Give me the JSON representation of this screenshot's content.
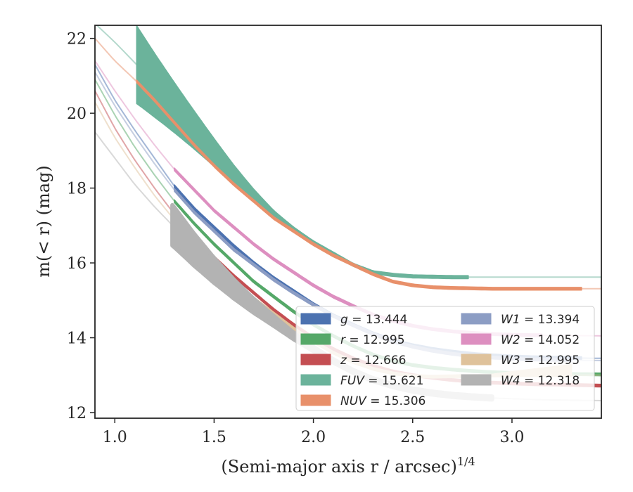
{
  "chart_data": {
    "type": "line",
    "xlabel": "(Semi-major axis r / arcsec)",
    "xlabel_power": "1/4",
    "ylabel": "m(< r) (mag)",
    "xlim": [
      0.9,
      3.45
    ],
    "ylim": [
      22.35,
      11.85
    ],
    "y_inverted": true,
    "x_ticks": [
      1.0,
      1.5,
      2.0,
      2.5,
      3.0
    ],
    "x_tick_labels": [
      "1.0",
      "1.5",
      "2.0",
      "2.5",
      "3.0"
    ],
    "y_ticks": [
      12,
      14,
      16,
      18,
      20,
      22
    ],
    "y_tick_labels": [
      "12",
      "14",
      "16",
      "18",
      "20",
      "22"
    ],
    "grid": false,
    "legend_position": "lower-right",
    "series": [
      {
        "name": "g",
        "value": "13.444",
        "color": "#4c72b0",
        "x": [
          0.9,
          1.0,
          1.1,
          1.2,
          1.3,
          1.4,
          1.5,
          1.6,
          1.7,
          1.8,
          1.9,
          2.0,
          2.1,
          2.2,
          2.3,
          2.4,
          2.5,
          2.6,
          2.7,
          2.8,
          2.9,
          3.0,
          3.1,
          3.2,
          3.3,
          3.45
        ],
        "y": [
          21.3,
          20.35,
          19.55,
          18.8,
          18.05,
          17.45,
          16.95,
          16.45,
          16.0,
          15.6,
          15.25,
          14.9,
          14.6,
          14.35,
          14.12,
          13.93,
          13.8,
          13.7,
          13.63,
          13.57,
          13.53,
          13.5,
          13.48,
          13.47,
          13.46,
          13.45
        ],
        "band_start": 1.3,
        "band_end": 3.35
      },
      {
        "name": "r",
        "value": "12.995",
        "color": "#55a868",
        "x": [
          0.9,
          1.0,
          1.1,
          1.2,
          1.3,
          1.4,
          1.5,
          1.6,
          1.7,
          1.8,
          1.9,
          2.0,
          2.1,
          2.2,
          2.3,
          2.4,
          2.5,
          2.6,
          2.7,
          2.8,
          2.9,
          3.0,
          3.1,
          3.2,
          3.3,
          3.45
        ],
        "y": [
          20.9,
          19.95,
          19.1,
          18.35,
          17.65,
          17.05,
          16.5,
          16.0,
          15.5,
          15.1,
          14.7,
          14.35,
          14.05,
          13.78,
          13.55,
          13.38,
          13.27,
          13.2,
          13.15,
          13.11,
          13.08,
          13.06,
          13.05,
          13.04,
          13.03,
          13.02
        ],
        "band_start": 1.3,
        "band_end": 3.45
      },
      {
        "name": "z",
        "value": "12.666",
        "color": "#c44e52",
        "x": [
          0.9,
          1.0,
          1.1,
          1.2,
          1.3,
          1.4,
          1.5,
          1.6,
          1.7,
          1.8,
          1.9,
          2.0,
          2.1,
          2.2,
          2.3,
          2.4,
          2.5,
          2.6,
          2.7,
          2.8,
          2.9,
          3.0,
          3.1,
          3.2,
          3.3,
          3.45
        ],
        "y": [
          20.6,
          19.6,
          18.75,
          18.0,
          17.3,
          16.7,
          16.15,
          15.65,
          15.2,
          14.75,
          14.35,
          14.0,
          13.7,
          13.45,
          13.25,
          13.1,
          13.0,
          12.93,
          12.87,
          12.83,
          12.8,
          12.78,
          12.76,
          12.75,
          12.74,
          12.72
        ],
        "band_start": 1.3,
        "band_end": 3.45
      },
      {
        "name": "FUV",
        "value": "15.621",
        "color": "#6bb39b",
        "x": [
          0.9,
          1.0,
          1.11,
          1.2,
          1.3,
          1.4,
          1.5,
          1.6,
          1.7,
          1.8,
          1.9,
          2.0,
          2.1,
          2.2,
          2.3,
          2.4,
          2.5,
          2.6,
          2.7,
          2.8,
          2.9,
          3.0,
          3.2,
          3.45
        ],
        "y": [
          22.4,
          21.9,
          21.3,
          20.75,
          20.15,
          19.55,
          18.95,
          18.35,
          17.8,
          17.3,
          16.9,
          16.55,
          16.25,
          15.95,
          15.75,
          15.68,
          15.64,
          15.63,
          15.62,
          15.62,
          15.62,
          15.62,
          15.62,
          15.62
        ],
        "band_start": 1.11,
        "band_end": 2.78,
        "wedge_width": 1.0
      },
      {
        "name": "NUV",
        "value": "15.306",
        "color": "#e8906a",
        "x": [
          0.9,
          1.0,
          1.11,
          1.2,
          1.3,
          1.4,
          1.5,
          1.6,
          1.7,
          1.8,
          1.9,
          2.0,
          2.1,
          2.2,
          2.3,
          2.4,
          2.5,
          2.6,
          2.7,
          2.8,
          2.9,
          3.0,
          3.2,
          3.45
        ],
        "y": [
          22.0,
          21.4,
          20.85,
          20.35,
          19.75,
          19.15,
          18.6,
          18.1,
          17.65,
          17.2,
          16.85,
          16.5,
          16.2,
          15.95,
          15.7,
          15.5,
          15.4,
          15.35,
          15.33,
          15.32,
          15.31,
          15.31,
          15.31,
          15.31
        ],
        "band_start": 1.11,
        "band_end": 3.35
      },
      {
        "name": "W1",
        "value": "13.394",
        "color": "#8c9dc4",
        "x": [
          0.9,
          1.0,
          1.1,
          1.2,
          1.3,
          1.4,
          1.5,
          1.6,
          1.7,
          1.8,
          1.9,
          2.0,
          2.1,
          2.2,
          2.3,
          2.4,
          2.5,
          2.6,
          2.7,
          2.8,
          2.9,
          3.0,
          3.1,
          3.2,
          3.3,
          3.45
        ],
        "y": [
          21.1,
          20.2,
          19.4,
          18.65,
          17.95,
          17.35,
          16.85,
          16.35,
          15.95,
          15.55,
          15.2,
          14.88,
          14.58,
          14.33,
          14.1,
          13.9,
          13.76,
          13.65,
          13.57,
          13.51,
          13.47,
          13.44,
          13.42,
          13.41,
          13.4,
          13.39
        ],
        "band_start": 1.3,
        "band_end": 3.3
      },
      {
        "name": "W2",
        "value": "14.052",
        "color": "#dd8fc0",
        "x": [
          0.9,
          1.0,
          1.1,
          1.2,
          1.3,
          1.4,
          1.5,
          1.6,
          1.7,
          1.8,
          1.9,
          2.0,
          2.1,
          2.2,
          2.3,
          2.4,
          2.5,
          2.6,
          2.7,
          2.8,
          2.9,
          3.0,
          3.1,
          3.2,
          3.3,
          3.45
        ],
        "y": [
          21.4,
          20.6,
          19.85,
          19.15,
          18.5,
          17.95,
          17.4,
          16.95,
          16.5,
          16.1,
          15.75,
          15.4,
          15.1,
          14.85,
          14.62,
          14.45,
          14.32,
          14.23,
          14.17,
          14.13,
          14.1,
          14.08,
          14.07,
          14.06,
          14.06,
          14.05
        ],
        "band_start": 1.3,
        "band_end": 3.15
      },
      {
        "name": "W3",
        "value": "12.995",
        "color": "#dfc29b",
        "x": [
          0.9,
          1.0,
          1.1,
          1.2,
          1.3,
          1.4,
          1.5,
          1.6,
          1.7,
          1.8,
          1.9,
          2.0,
          2.1,
          2.2,
          2.3,
          2.4,
          2.5,
          2.6,
          2.7,
          2.8,
          2.9,
          3.0,
          3.1,
          3.2,
          3.3,
          3.45
        ],
        "y": [
          20.3,
          19.35,
          18.55,
          17.8,
          17.15,
          16.55,
          16.0,
          15.5,
          15.05,
          14.65,
          14.25,
          13.9,
          13.6,
          13.35,
          13.17,
          13.05,
          12.98,
          12.96,
          12.97,
          12.98,
          12.99,
          13.0,
          13.0,
          13.0,
          13.0,
          13.0
        ],
        "band_start": 1.3,
        "band_end": 3.3,
        "flare_start": 2.9,
        "flare_end": 3.3,
        "flare_drop": 0.25
      },
      {
        "name": "W4",
        "value": "12.318",
        "color": "#b3b3b3",
        "x": [
          0.9,
          1.0,
          1.1,
          1.2,
          1.3,
          1.4,
          1.5,
          1.6,
          1.7,
          1.8,
          1.9,
          2.0,
          2.1,
          2.2,
          2.3,
          2.4,
          2.5,
          2.6,
          2.7,
          2.8,
          2.9,
          3.0,
          3.1,
          3.2,
          3.3,
          3.45
        ],
        "y": [
          19.5,
          18.8,
          18.1,
          17.5,
          16.95,
          16.35,
          15.8,
          15.3,
          14.85,
          14.45,
          14.05,
          13.7,
          13.38,
          13.1,
          12.88,
          12.72,
          12.6,
          12.52,
          12.46,
          12.42,
          12.39,
          12.37,
          12.35,
          12.34,
          12.33,
          12.32
        ],
        "band_start": 1.29,
        "band_end": 2.9,
        "wedge_width": 0.5
      }
    ],
    "legend_columns": [
      [
        "g",
        "r",
        "z",
        "FUV",
        "NUV"
      ],
      [
        "W1",
        "W2",
        "W3",
        "W4"
      ]
    ]
  }
}
